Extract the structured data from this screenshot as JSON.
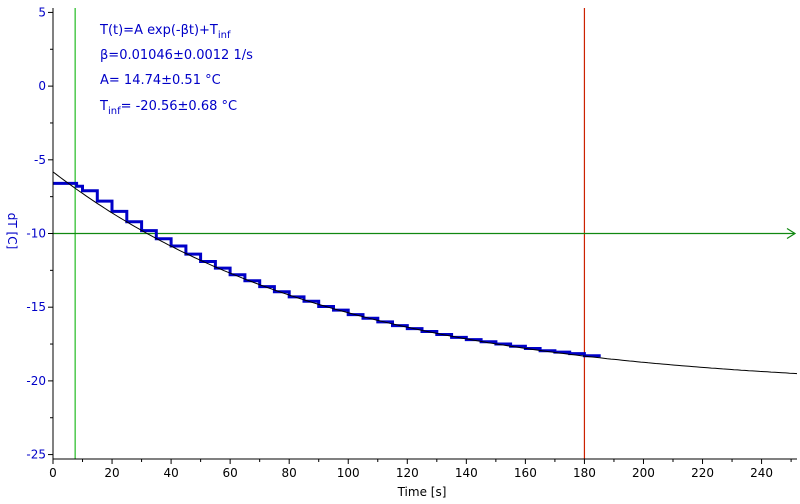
{
  "chart_data": {
    "type": "line",
    "title": "",
    "xlabel": "Time [s]",
    "ylabel": "dT [C]",
    "xlim": [
      0,
      252
    ],
    "ylim": [
      -25.3,
      5.3
    ],
    "x_ticks": [
      0,
      20,
      40,
      60,
      80,
      100,
      120,
      140,
      160,
      180,
      200,
      220,
      240
    ],
    "y_ticks": [
      5,
      0,
      -5,
      -10,
      -15,
      -20,
      -25
    ],
    "grid": false,
    "legend": "none",
    "fit": {
      "formula": {
        "main": "T(t)=A exp(-βt)+T",
        "sub": "inf"
      },
      "beta_text": "β=0.01046±0.0012 1/s",
      "a_text": "A= 14.74±0.51 °C",
      "tinf_text": {
        "main": "T",
        "sub": "inf",
        "rest": "= -20.56±0.68 °C"
      },
      "A": 14.74,
      "beta": 0.01046,
      "T_inf": -20.56,
      "x_range": [
        0,
        252
      ]
    },
    "series": [
      {
        "style": "step",
        "color": "#0000c8",
        "x": [
          0,
          5,
          8,
          10,
          15,
          20,
          25,
          30,
          35,
          40,
          45,
          50,
          55,
          60,
          65,
          70,
          75,
          80,
          85,
          90,
          95,
          100,
          105,
          110,
          115,
          120,
          125,
          130,
          135,
          140,
          145,
          150,
          155,
          160,
          165,
          170,
          175,
          180,
          185
        ],
        "y": [
          -6.6,
          -6.6,
          -6.8,
          -7.1,
          -7.8,
          -8.5,
          -9.2,
          -9.8,
          -10.35,
          -10.85,
          -11.4,
          -11.9,
          -12.35,
          -12.8,
          -13.2,
          -13.6,
          -13.95,
          -14.3,
          -14.6,
          -14.95,
          -15.2,
          -15.5,
          -15.75,
          -16.0,
          -16.25,
          -16.45,
          -16.65,
          -16.85,
          -17.05,
          -17.2,
          -17.35,
          -17.5,
          -17.65,
          -17.8,
          -17.95,
          -18.05,
          -18.15,
          -18.3,
          -18.4
        ]
      }
    ],
    "cursors": [
      {
        "axis": "x",
        "value": 7.5,
        "color": "#22bb22"
      },
      {
        "axis": "x",
        "value": 180,
        "color": "#cc2200"
      },
      {
        "axis": "y",
        "value": -10,
        "color": "#118811"
      }
    ],
    "colors": {
      "axis": "#000000",
      "ytext": "#0000c8",
      "annotation": "#0000c8",
      "fit": "#000000"
    }
  }
}
